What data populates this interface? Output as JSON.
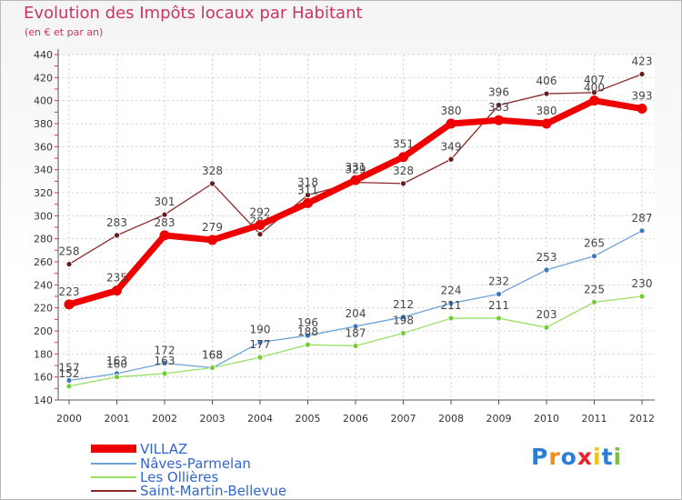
{
  "title": "Evolution des Impôts locaux par Habitant",
  "subtitle": "(en € et par an)",
  "brand": "Proxiti",
  "colors": {
    "title": "#cc3366",
    "legend_text": "#3366cc",
    "axis_text": "#333333",
    "grid": "#d0d0d0",
    "label": "#444444"
  },
  "chart_data": {
    "type": "line",
    "title": "Evolution des Impôts locaux par Habitant",
    "subtitle": "(en € et par an)",
    "xlabel": "",
    "ylabel": "",
    "ylim": [
      140,
      440
    ],
    "yticks": [
      140,
      160,
      180,
      200,
      220,
      240,
      260,
      280,
      300,
      320,
      340,
      360,
      380,
      400,
      420,
      440
    ],
    "grid": true,
    "legend_position": "bottom-left",
    "categories": [
      "2000",
      "2001",
      "2002",
      "2003",
      "2004",
      "2005",
      "2006",
      "2007",
      "2008",
      "2009",
      "2010",
      "2011",
      "2012"
    ],
    "series": [
      {
        "name": "Saint-Martin-Bellevue",
        "color": "#8b2a2a",
        "marker": "#6b1a1a",
        "width": 1.3,
        "values": [
          258,
          283,
          301,
          328,
          284,
          318,
          329,
          328,
          349,
          396,
          406,
          407,
          423
        ]
      },
      {
        "name": "Nâves-Parmelan",
        "color": "#6fa3d8",
        "marker": "#3a78c0",
        "width": 1.3,
        "values": [
          157,
          163,
          172,
          168,
          190,
          196,
          204,
          212,
          224,
          232,
          253,
          265,
          287
        ]
      },
      {
        "name": "Les Ollières",
        "color": "#99e066",
        "marker": "#77cc33",
        "width": 1.3,
        "values": [
          152,
          160,
          163,
          168,
          177,
          188,
          187,
          198,
          211,
          211,
          203,
          225,
          230
        ]
      },
      {
        "name": "VILLAZ",
        "color": "#ee0000",
        "marker": "#ee0000",
        "width": 7,
        "values": [
          223,
          235,
          283,
          279,
          292,
          311,
          331,
          351,
          380,
          383,
          380,
          400,
          393
        ]
      }
    ],
    "legend": [
      "VILLAZ",
      "Nâves-Parmelan",
      "Les Ollières",
      "Saint-Martin-Bellevue"
    ]
  }
}
